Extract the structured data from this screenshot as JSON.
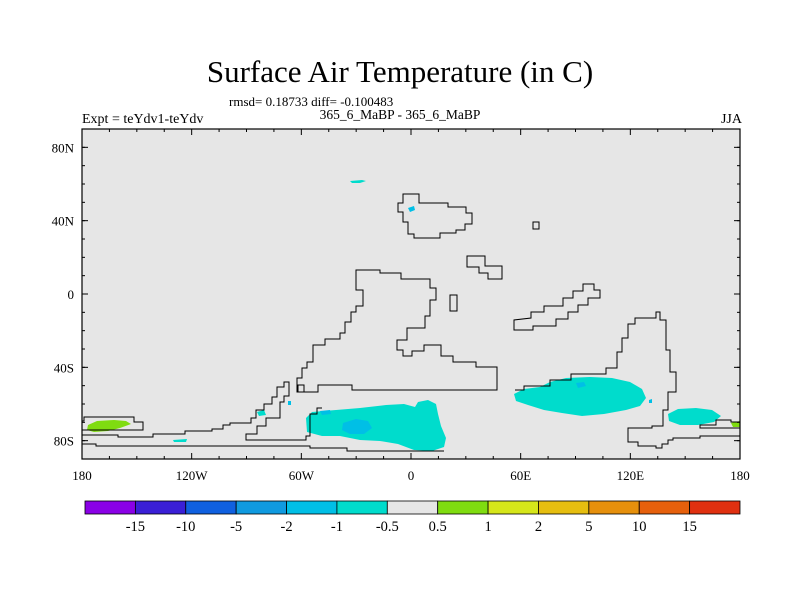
{
  "chart_data": {
    "type": "heatmap",
    "title": "Surface Air Temperature (in C)",
    "stats": "rmsd= 0.18733 diff= -0.100483",
    "subtitle_left": "Expt = teYdv1-teYdv",
    "subtitle_center": "365_6_MaBP - 365_6_MaBP",
    "subtitle_right": "JJA",
    "xlim": [
      -180,
      180
    ],
    "ylim": [
      -90,
      90
    ],
    "x_ticks": [
      {
        "value": -180,
        "label": "180"
      },
      {
        "value": -120,
        "label": "120W"
      },
      {
        "value": -60,
        "label": "60W"
      },
      {
        "value": 0,
        "label": "0"
      },
      {
        "value": 60,
        "label": "60E"
      },
      {
        "value": 120,
        "label": "120E"
      },
      {
        "value": 180,
        "label": "180"
      }
    ],
    "y_ticks": [
      {
        "value": 80,
        "label": "80N"
      },
      {
        "value": 40,
        "label": "40N"
      },
      {
        "value": 0,
        "label": "0"
      },
      {
        "value": -40,
        "label": "40S"
      },
      {
        "value": -80,
        "label": "80S"
      }
    ],
    "background_color": "#e6e6e6",
    "colorbar": {
      "labels": [
        "-15",
        "-10",
        "-5",
        "-2",
        "-1",
        "-0.5",
        "0.5",
        "1",
        "2",
        "5",
        "10",
        "15"
      ],
      "colors": [
        "#8a00e6",
        "#3a1fd6",
        "#1060e0",
        "#109ae0",
        "#00bfe6",
        "#00dccc",
        "#e6e6e6",
        "#7fdc10",
        "#d6e61a",
        "#e6be10",
        "#e6900c",
        "#e6600c",
        "#e03010"
      ]
    },
    "anomaly_patches": [
      {
        "region": "Arctic ocean",
        "lon": -30,
        "lat": 62,
        "class": "-1 to -0.5"
      },
      {
        "region": "north continent",
        "lon": 0,
        "lat": 46,
        "class": "-1 to -0.5"
      },
      {
        "region": "south-west pole edge",
        "lon": -170,
        "lat": -72,
        "class": "0.5 to 1"
      },
      {
        "region": "Gondwana south",
        "lon": -5,
        "lat": -75,
        "class": "-1 to -0.5"
      },
      {
        "region": "Gondwana south core",
        "lon": -30,
        "lat": -72,
        "class": "-2 to -1"
      },
      {
        "region": "south-east continent",
        "lon": 85,
        "lat": -57,
        "class": "-1 to -0.5"
      },
      {
        "region": "far east",
        "lon": 155,
        "lat": -66,
        "class": "-1 to -0.5"
      },
      {
        "region": "east edge",
        "lon": 177,
        "lat": -70,
        "class": "0.5 to 1"
      }
    ]
  }
}
